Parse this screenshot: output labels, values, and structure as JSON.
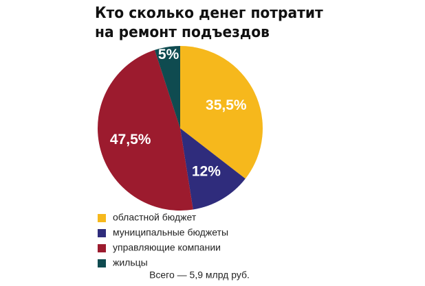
{
  "chart_data": {
    "type": "pie",
    "title": [
      "Кто сколько денег потратит",
      "на ремонт подъездов"
    ],
    "categories": [
      "областной бюджет",
      "муниципальные бюджеты",
      "управляющие компании",
      "жильцы"
    ],
    "values": [
      35.5,
      12,
      47.5,
      5
    ],
    "value_labels": [
      "35,5%",
      "12%",
      "47,5%",
      "5%"
    ],
    "colors": [
      "#f6b81c",
      "#2f2c7c",
      "#9c1b2e",
      "#0f4b50"
    ],
    "annotation": "Всего — 5,9 млрд руб."
  }
}
